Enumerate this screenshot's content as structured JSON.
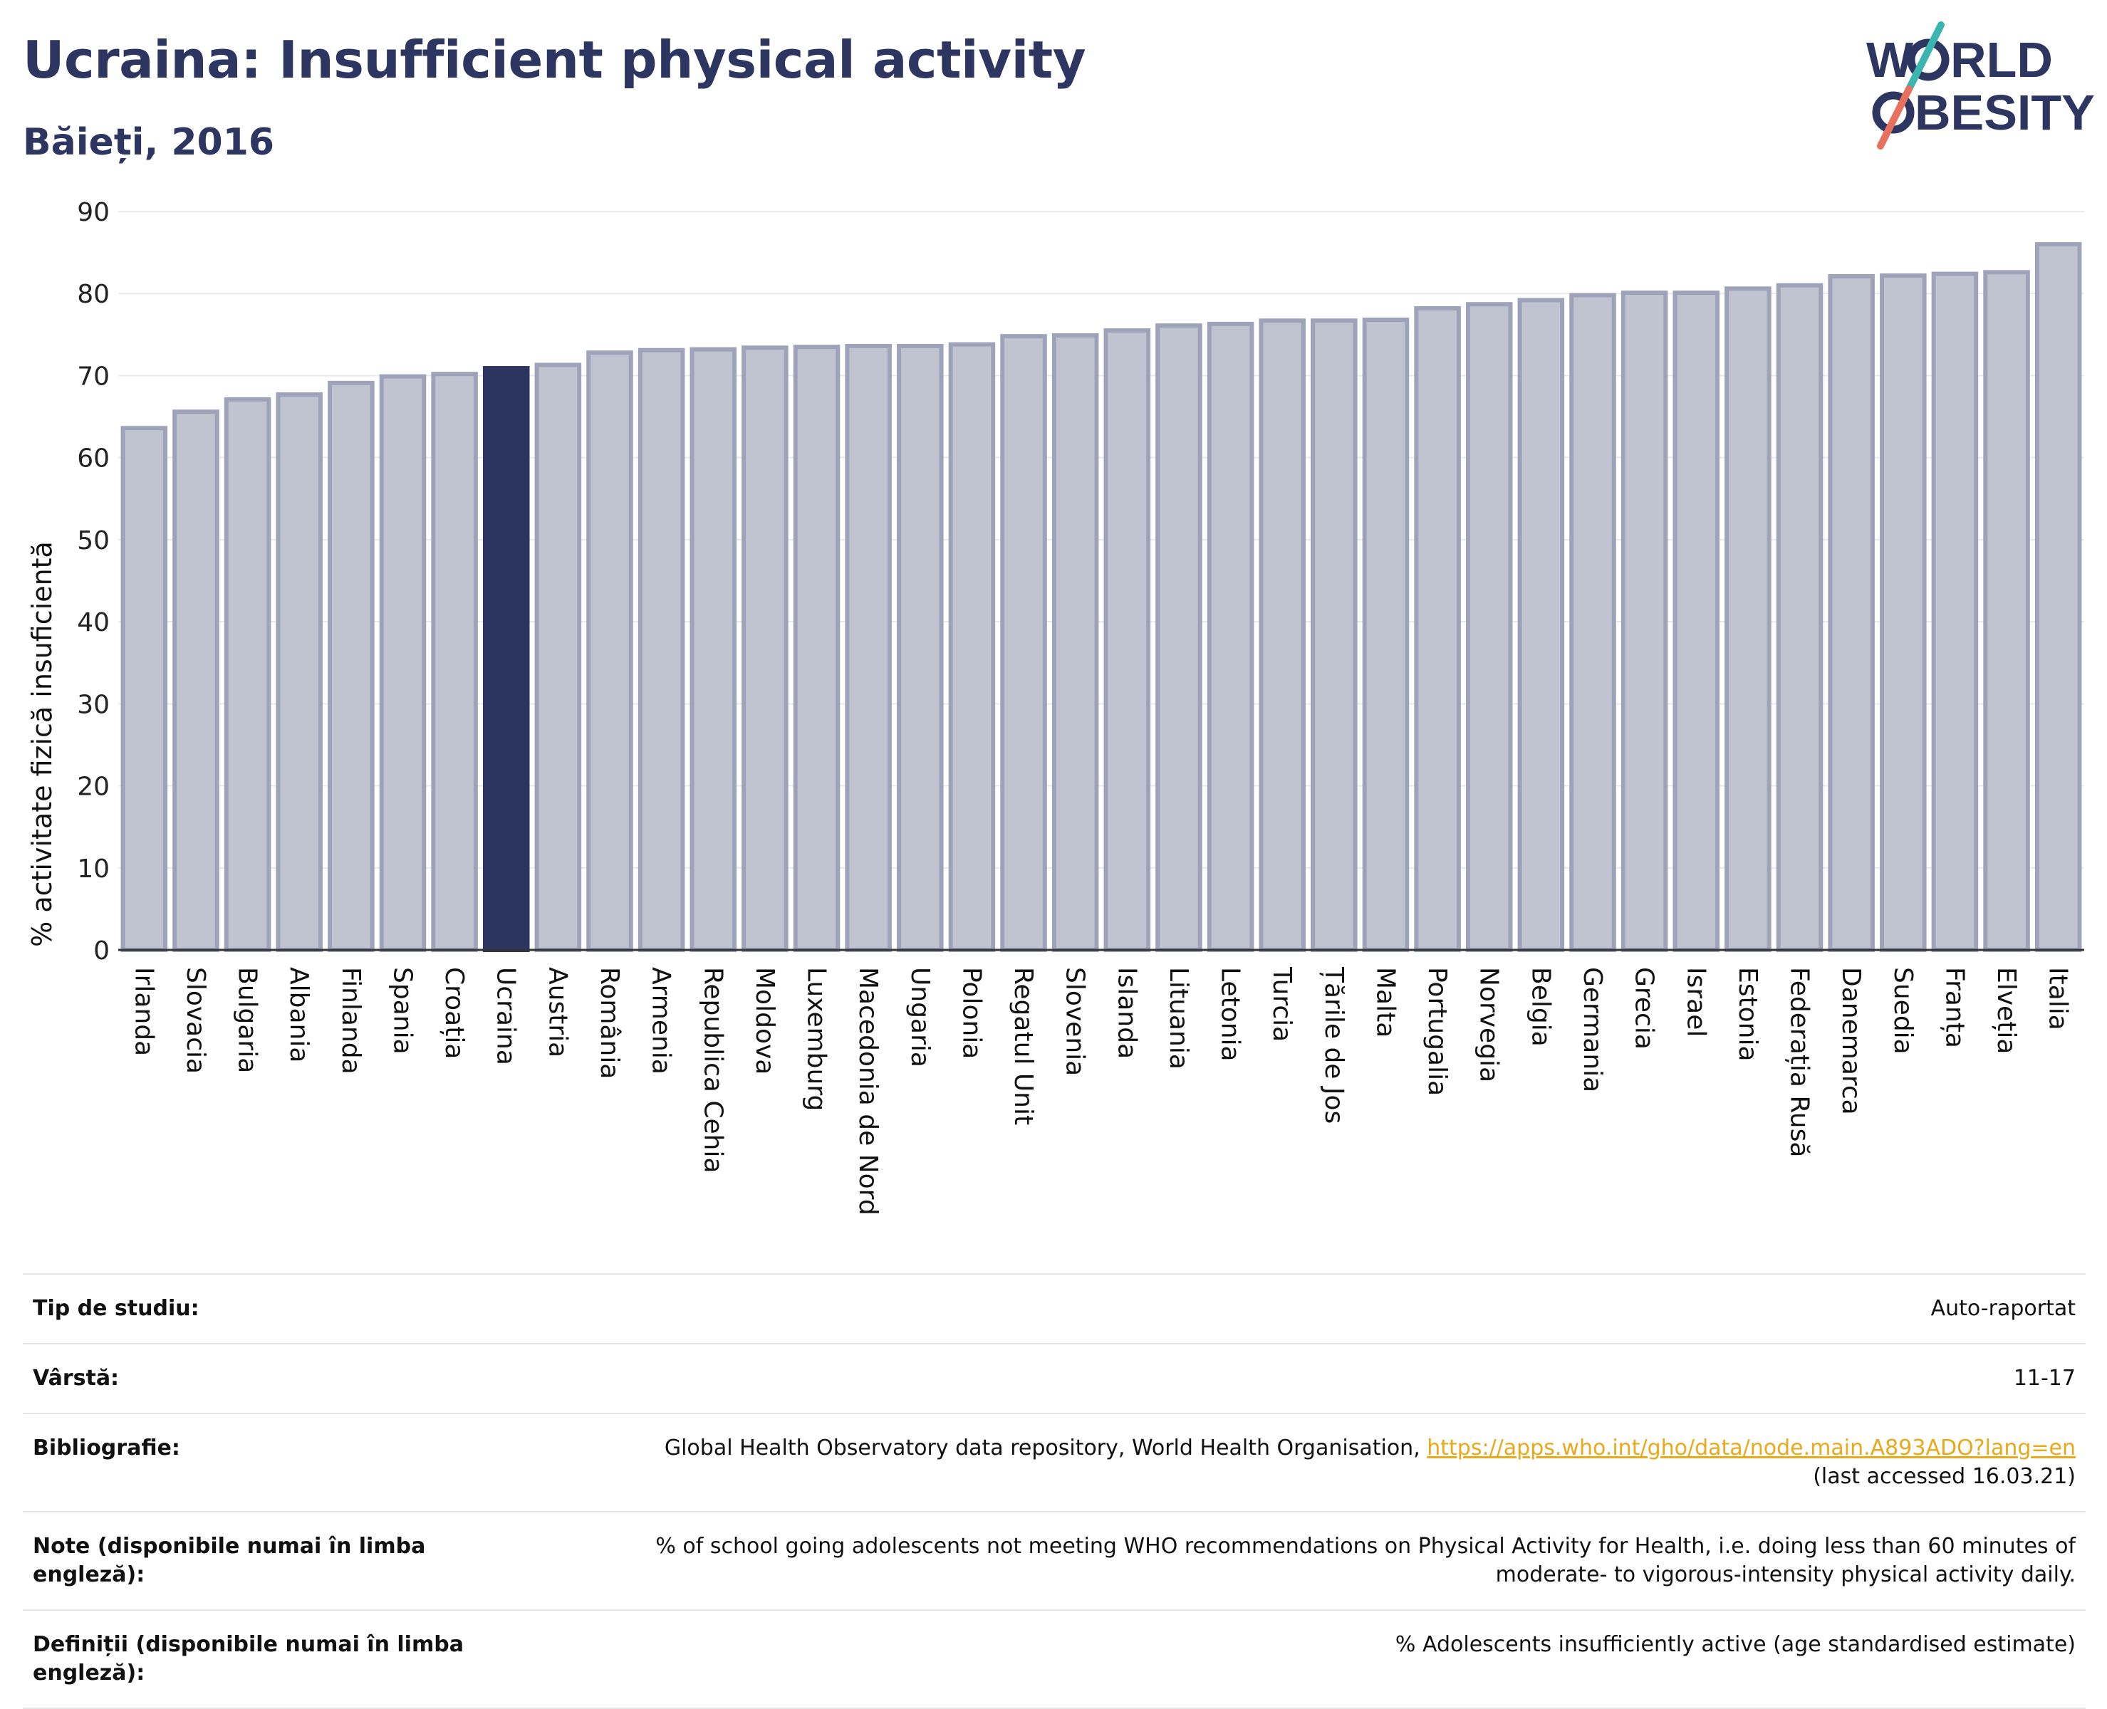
{
  "title": "Ucraina: Insufficient physical activity",
  "subtitle": "Băieți, 2016",
  "logo": {
    "line1_a": "W",
    "line1_b": "RLD",
    "line2_b": "BESITY",
    "slash_color_top": "#3ab5b0",
    "slash_color_bottom": "#e8705f"
  },
  "colors": {
    "bar": "#c0c3d0",
    "bar_edge": "#9ea3b9",
    "highlight": "#2b355f",
    "text_dark": "#2d3561",
    "link": "#e8a91b"
  },
  "chart_data": {
    "type": "bar",
    "ylabel": "% activitate fizică insuficientă",
    "ylim": [
      0,
      90
    ],
    "yticks": [
      0,
      10,
      20,
      30,
      40,
      50,
      60,
      70,
      80,
      90
    ],
    "grid": true,
    "highlight": "Ucraina",
    "categories": [
      "Irlanda",
      "Slovacia",
      "Bulgaria",
      "Albania",
      "Finlanda",
      "Spania",
      "Croația",
      "Ucraina",
      "Austria",
      "România",
      "Armenia",
      "Republica Cehia",
      "Moldova",
      "Luxemburg",
      "Macedonia de Nord",
      "Ungaria",
      "Polonia",
      "Regatul Unit",
      "Slovenia",
      "Islanda",
      "Lituania",
      "Letonia",
      "Turcia",
      "Țările de Jos",
      "Malta",
      "Portugalia",
      "Norvegia",
      "Belgia",
      "Germania",
      "Grecia",
      "Israel",
      "Estonia",
      "Federația Rusă",
      "Danemarca",
      "Suedia",
      "Franța",
      "Elveția",
      "Italia"
    ],
    "values": [
      63.6,
      65.6,
      67.1,
      67.7,
      69.1,
      69.9,
      70.2,
      70.9,
      71.3,
      72.8,
      73.1,
      73.2,
      73.4,
      73.5,
      73.6,
      73.6,
      73.8,
      74.8,
      74.9,
      75.5,
      76.1,
      76.3,
      76.7,
      76.7,
      76.8,
      78.2,
      78.7,
      79.2,
      79.8,
      80.1,
      80.1,
      80.6,
      81.0,
      82.1,
      82.2,
      82.4,
      82.6,
      86.0
    ]
  },
  "info": {
    "rows": [
      {
        "label": "Tip de studiu:",
        "value": "Auto-raportat"
      },
      {
        "label": "Vârstă:",
        "value": "11-17"
      },
      {
        "label": "Bibliografie:",
        "value": "Global Health Observatory data repository, World Health Organisation, ",
        "link": "https://apps.who.int/gho/data/node.main.A893ADO?lang=en",
        "value2": "(last accessed 16.03.21)"
      },
      {
        "label": "Note (disponibile numai în limba engleză):",
        "value": "% of school going adolescents not meeting WHO recommendations on Physical Activity for Health, i.e. doing less than 60 minutes of moderate- to vigorous-intensity physical activity daily."
      },
      {
        "label": "Definiții (disponibile numai în limba engleză):",
        "value": "% Adolescents insufficiently active (age standardised estimate)"
      }
    ]
  }
}
